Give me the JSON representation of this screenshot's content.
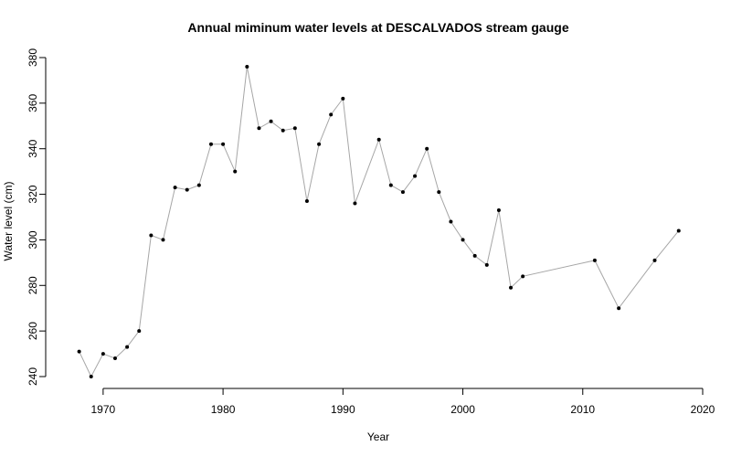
{
  "chart_data": {
    "type": "line",
    "title": "Annual miminum water levels at DESCALVADOS stream gauge",
    "xlabel": "Year",
    "ylabel": "Water level (cm)",
    "xlim": [
      1966.2,
      2020
    ],
    "ylim": [
      240,
      380
    ],
    "xticks": [
      1970,
      1980,
      1990,
      2000,
      2010,
      2020
    ],
    "yticks": [
      240,
      260,
      280,
      300,
      320,
      340,
      360,
      380
    ],
    "line_color": "#a6a6a6",
    "point_color": "#000000",
    "grid": false,
    "x": [
      1968,
      1969,
      1970,
      1971,
      1972,
      1973,
      1974,
      1975,
      1976,
      1977,
      1978,
      1979,
      1980,
      1981,
      1982,
      1983,
      1984,
      1985,
      1986,
      1987,
      1988,
      1989,
      1990,
      1991,
      1993,
      1994,
      1995,
      1996,
      1997,
      1998,
      1999,
      2000,
      2001,
      2002,
      2003,
      2004,
      2005,
      2011,
      2013,
      2016,
      2018
    ],
    "y": [
      251,
      240,
      250,
      248,
      253,
      260,
      302,
      300,
      323,
      322,
      324,
      342,
      342,
      330,
      376,
      349,
      352,
      348,
      349,
      317,
      342,
      355,
      362,
      316,
      344,
      324,
      321,
      328,
      340,
      321,
      308,
      300,
      293,
      289,
      313,
      279,
      284,
      291,
      270,
      291,
      304
    ]
  }
}
